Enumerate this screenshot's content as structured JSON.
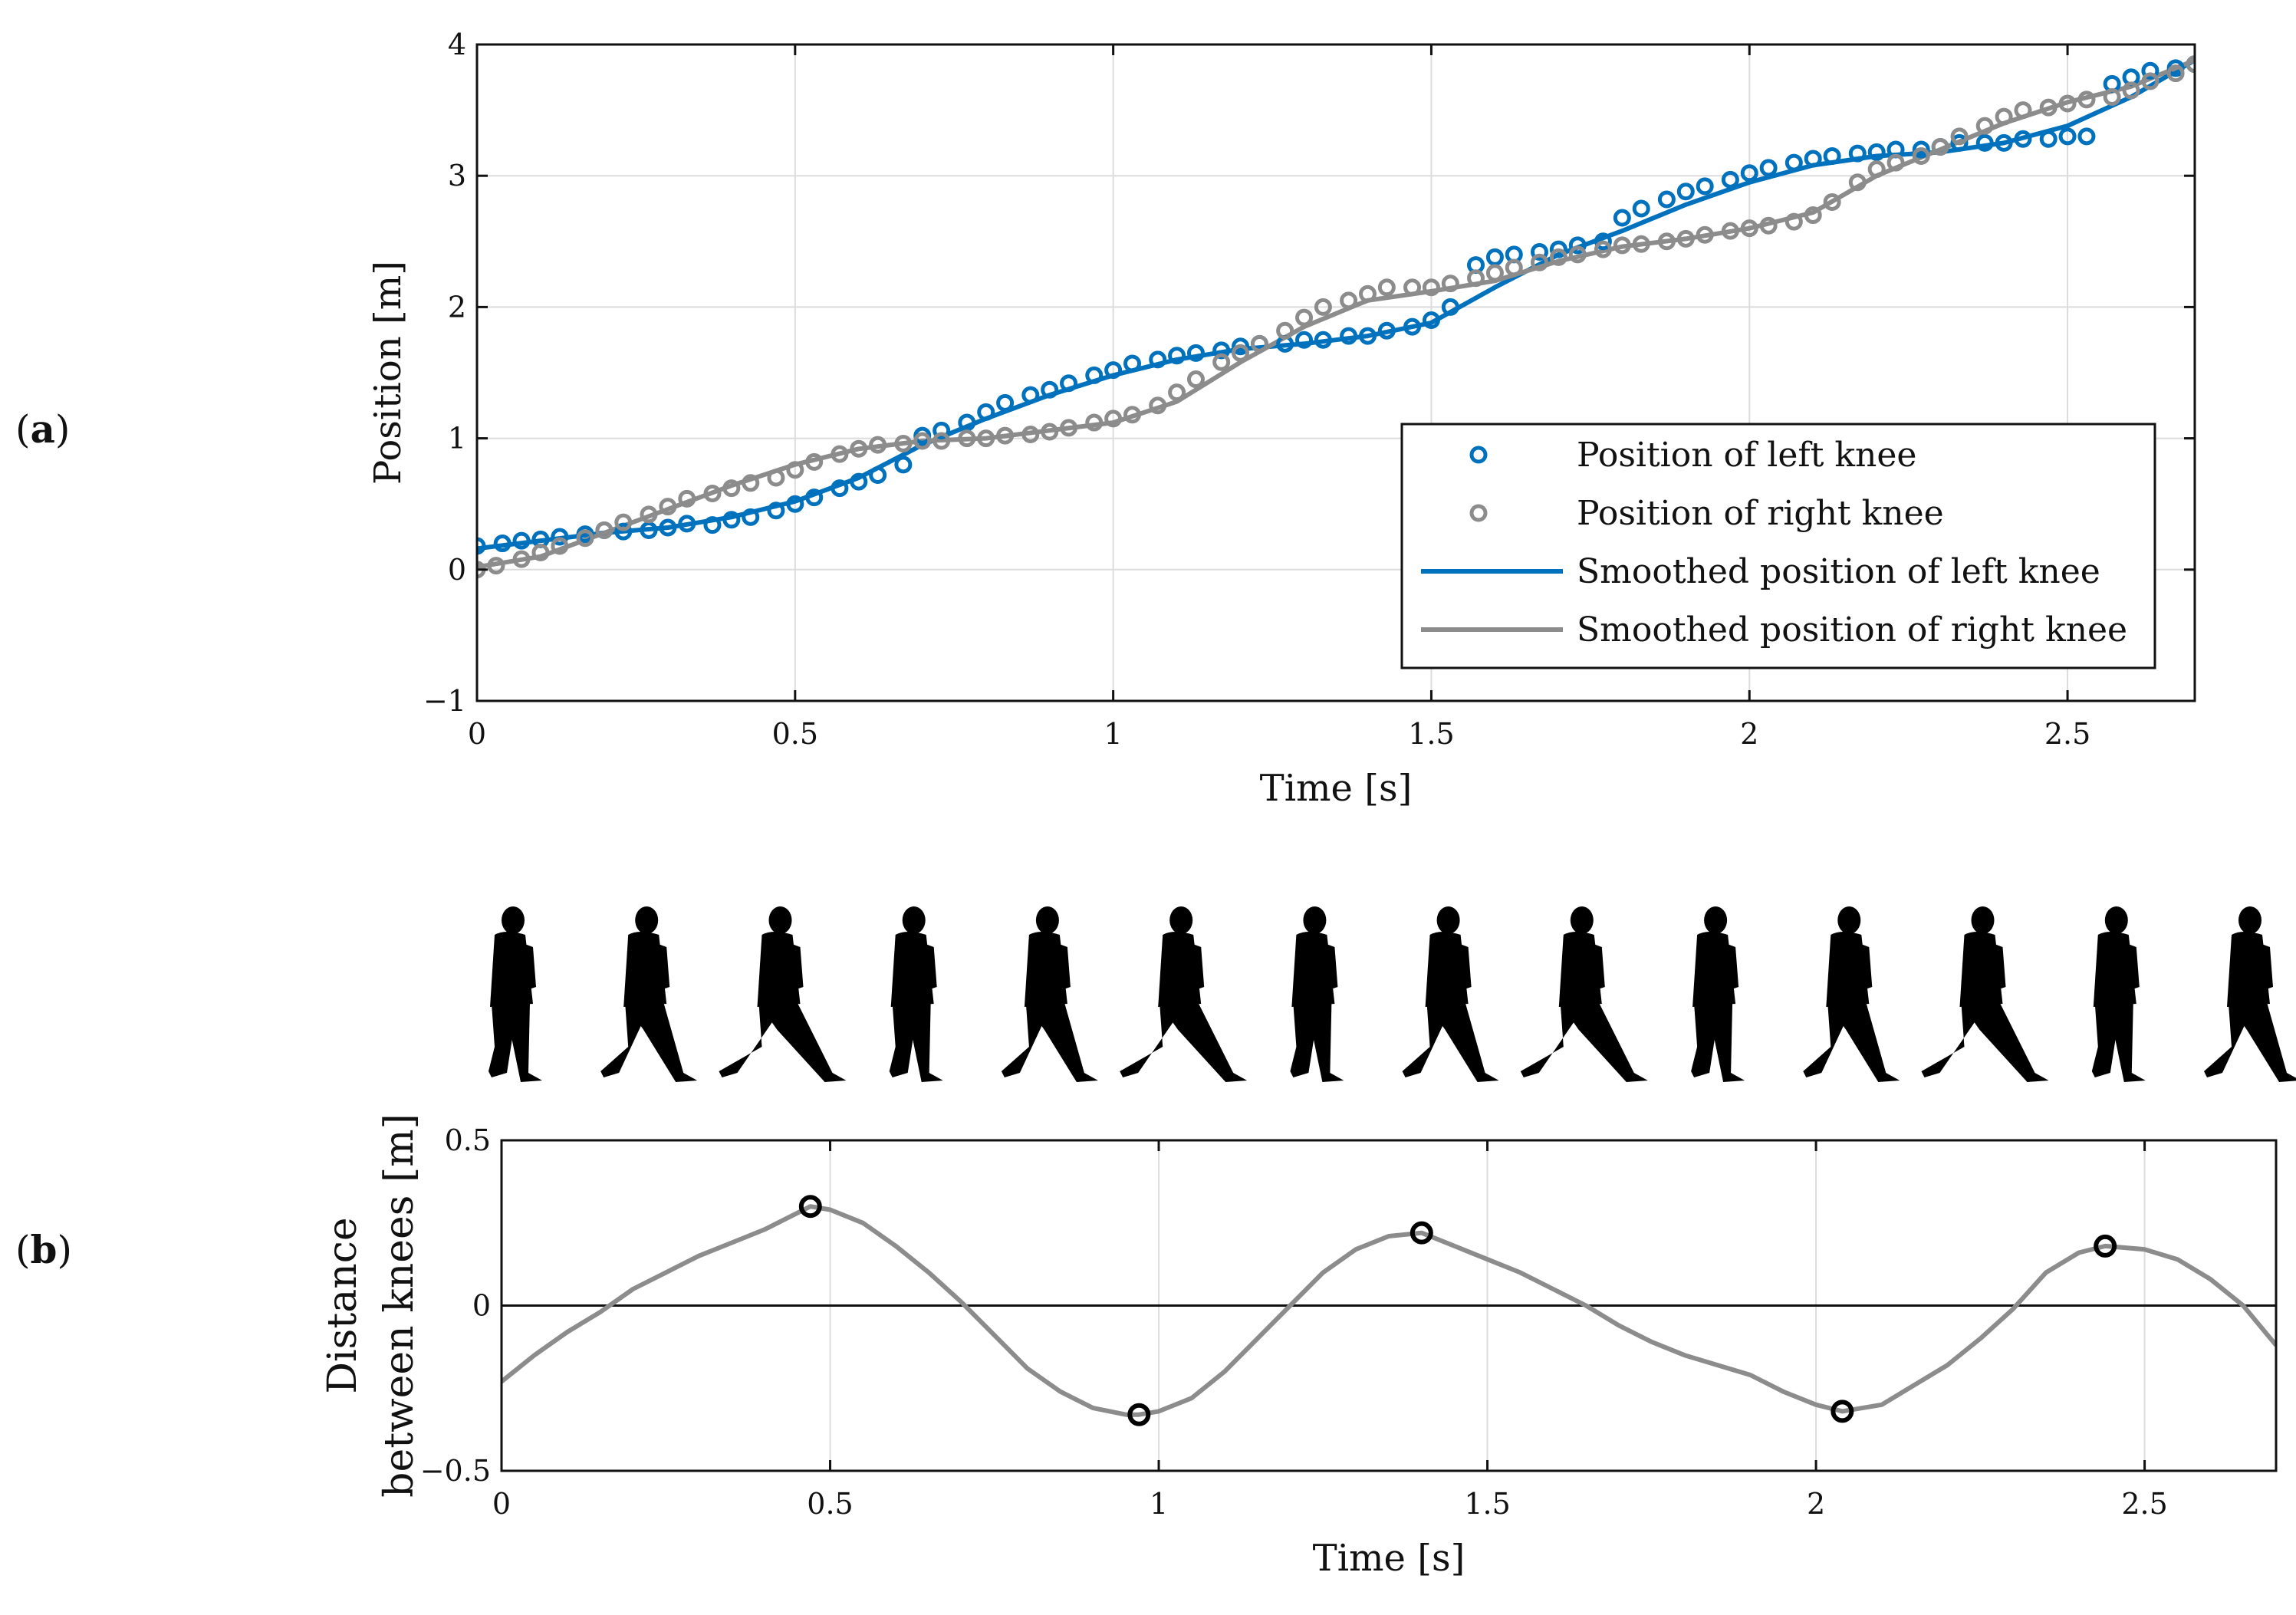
{
  "panel_labels": {
    "a": "a",
    "b": "b"
  },
  "chart_data": [
    {
      "type": "scatter",
      "panel": "a",
      "xlabel": "Time [s]",
      "ylabel": "Position [m]",
      "xlim": [
        0,
        2.7
      ],
      "ylim": [
        -1,
        4
      ],
      "xticks": [
        0,
        0.5,
        1,
        1.5,
        2,
        2.5
      ],
      "xtick_labels": [
        "0",
        "0.5",
        "1",
        "1.5",
        "2",
        "2.5"
      ],
      "yticks": [
        -1,
        0,
        1,
        2,
        3,
        4
      ],
      "ytick_labels": [
        "−1",
        "0",
        "1",
        "2",
        "3",
        "4"
      ],
      "grid": true,
      "legend_position": "bottom-right",
      "series": [
        {
          "name": "Position of left knee",
          "kind": "markers",
          "color": "#0072BD",
          "x": [
            0.0,
            0.04,
            0.07,
            0.1,
            0.13,
            0.17,
            0.2,
            0.23,
            0.27,
            0.3,
            0.33,
            0.37,
            0.4,
            0.43,
            0.47,
            0.5,
            0.53,
            0.57,
            0.6,
            0.63,
            0.67,
            0.7,
            0.73,
            0.77,
            0.8,
            0.83,
            0.87,
            0.9,
            0.93,
            0.97,
            1.0,
            1.03,
            1.07,
            1.1,
            1.13,
            1.17,
            1.2,
            1.23,
            1.27,
            1.3,
            1.33,
            1.37,
            1.4,
            1.43,
            1.47,
            1.5,
            1.53,
            1.57,
            1.6,
            1.63,
            1.67,
            1.7,
            1.73,
            1.77,
            1.8,
            1.83,
            1.87,
            1.9,
            1.93,
            1.97,
            2.0,
            2.03,
            2.07,
            2.1,
            2.13,
            2.17,
            2.2,
            2.23,
            2.27,
            2.3,
            2.33,
            2.37,
            2.4,
            2.43,
            2.47,
            2.5,
            2.53,
            2.57,
            2.6,
            2.63,
            2.67,
            2.7
          ],
          "y": [
            0.18,
            0.2,
            0.22,
            0.23,
            0.25,
            0.27,
            0.3,
            0.29,
            0.3,
            0.32,
            0.35,
            0.34,
            0.38,
            0.4,
            0.45,
            0.5,
            0.55,
            0.62,
            0.67,
            0.72,
            0.8,
            1.02,
            1.06,
            1.12,
            1.2,
            1.27,
            1.33,
            1.37,
            1.42,
            1.48,
            1.52,
            1.57,
            1.6,
            1.63,
            1.65,
            1.67,
            1.7,
            1.72,
            1.72,
            1.75,
            1.75,
            1.78,
            1.78,
            1.82,
            1.85,
            1.9,
            2.0,
            2.32,
            2.38,
            2.4,
            2.42,
            2.44,
            2.47,
            2.5,
            2.68,
            2.75,
            2.82,
            2.88,
            2.92,
            2.97,
            3.02,
            3.06,
            3.1,
            3.13,
            3.15,
            3.17,
            3.18,
            3.2,
            3.2,
            3.22,
            3.25,
            3.25,
            3.25,
            3.28,
            3.28,
            3.3,
            3.3,
            3.7,
            3.75,
            3.8,
            3.82,
            3.85
          ]
        },
        {
          "name": "Position of right knee",
          "kind": "markers",
          "color": "#8C8C8C",
          "x": [
            0.0,
            0.03,
            0.07,
            0.1,
            0.13,
            0.17,
            0.2,
            0.23,
            0.27,
            0.3,
            0.33,
            0.37,
            0.4,
            0.43,
            0.47,
            0.5,
            0.53,
            0.57,
            0.6,
            0.63,
            0.67,
            0.7,
            0.73,
            0.77,
            0.8,
            0.83,
            0.87,
            0.9,
            0.93,
            0.97,
            1.0,
            1.03,
            1.07,
            1.1,
            1.13,
            1.17,
            1.2,
            1.23,
            1.27,
            1.3,
            1.33,
            1.37,
            1.4,
            1.43,
            1.47,
            1.5,
            1.53,
            1.57,
            1.6,
            1.63,
            1.67,
            1.7,
            1.73,
            1.77,
            1.8,
            1.83,
            1.87,
            1.9,
            1.93,
            1.97,
            2.0,
            2.03,
            2.07,
            2.1,
            2.13,
            2.17,
            2.2,
            2.23,
            2.27,
            2.3,
            2.33,
            2.37,
            2.4,
            2.43,
            2.47,
            2.5,
            2.53,
            2.57,
            2.6,
            2.63,
            2.67,
            2.7
          ],
          "y": [
            0.0,
            0.03,
            0.08,
            0.13,
            0.18,
            0.24,
            0.3,
            0.36,
            0.42,
            0.48,
            0.54,
            0.58,
            0.62,
            0.66,
            0.7,
            0.76,
            0.82,
            0.88,
            0.92,
            0.95,
            0.96,
            0.98,
            0.98,
            1.0,
            1.0,
            1.02,
            1.03,
            1.05,
            1.08,
            1.12,
            1.15,
            1.18,
            1.25,
            1.35,
            1.45,
            1.58,
            1.65,
            1.72,
            1.82,
            1.92,
            2.0,
            2.05,
            2.1,
            2.15,
            2.15,
            2.15,
            2.18,
            2.22,
            2.26,
            2.3,
            2.34,
            2.38,
            2.4,
            2.44,
            2.47,
            2.48,
            2.5,
            2.52,
            2.55,
            2.58,
            2.6,
            2.62,
            2.65,
            2.7,
            2.8,
            2.95,
            3.05,
            3.1,
            3.15,
            3.22,
            3.3,
            3.38,
            3.45,
            3.5,
            3.52,
            3.55,
            3.58,
            3.6,
            3.65,
            3.72,
            3.78,
            3.85
          ]
        },
        {
          "name": "Smoothed position of left knee",
          "kind": "line",
          "color": "#0072BD",
          "x": [
            0,
            0.1,
            0.2,
            0.3,
            0.4,
            0.5,
            0.6,
            0.7,
            0.8,
            0.9,
            1.0,
            1.1,
            1.2,
            1.3,
            1.4,
            1.5,
            1.6,
            1.7,
            1.8,
            1.9,
            2.0,
            2.1,
            2.2,
            2.3,
            2.4,
            2.5,
            2.6,
            2.7
          ],
          "y": [
            0.16,
            0.22,
            0.28,
            0.32,
            0.4,
            0.52,
            0.7,
            0.95,
            1.15,
            1.33,
            1.48,
            1.6,
            1.68,
            1.72,
            1.78,
            1.88,
            2.15,
            2.4,
            2.58,
            2.78,
            2.95,
            3.08,
            3.15,
            3.18,
            3.25,
            3.38,
            3.6,
            3.88
          ]
        },
        {
          "name": "Smoothed position of right knee",
          "kind": "line",
          "color": "#8C8C8C",
          "x": [
            0,
            0.1,
            0.2,
            0.3,
            0.4,
            0.5,
            0.6,
            0.7,
            0.8,
            0.9,
            1.0,
            1.1,
            1.2,
            1.3,
            1.4,
            1.5,
            1.6,
            1.7,
            1.8,
            1.9,
            2.0,
            2.1,
            2.2,
            2.3,
            2.4,
            2.5,
            2.6,
            2.7
          ],
          "y": [
            0.02,
            0.1,
            0.28,
            0.46,
            0.64,
            0.8,
            0.92,
            0.98,
            1.0,
            1.06,
            1.12,
            1.28,
            1.58,
            1.85,
            2.05,
            2.12,
            2.2,
            2.35,
            2.46,
            2.52,
            2.6,
            2.72,
            3.0,
            3.2,
            3.4,
            3.56,
            3.68,
            3.88
          ]
        }
      ]
    },
    {
      "type": "line",
      "panel": "b",
      "xlabel": "Time [s]",
      "ylabel": [
        "Distance",
        "between knees [m]"
      ],
      "xlim": [
        0,
        2.7
      ],
      "ylim": [
        -0.5,
        0.5
      ],
      "xticks": [
        0,
        0.5,
        1,
        1.5,
        2,
        2.5
      ],
      "xtick_labels": [
        "0",
        "0.5",
        "1",
        "1.5",
        "2",
        "2.5"
      ],
      "yticks": [
        -0.5,
        0,
        0.5
      ],
      "ytick_labels": [
        "−0.5",
        "0",
        "0.5"
      ],
      "grid": true,
      "zero_line": true,
      "series": [
        {
          "kind": "line",
          "color": "#8C8C8C",
          "x": [
            0,
            0.05,
            0.1,
            0.15,
            0.2,
            0.25,
            0.3,
            0.35,
            0.4,
            0.45,
            0.47,
            0.5,
            0.55,
            0.6,
            0.65,
            0.7,
            0.75,
            0.8,
            0.85,
            0.9,
            0.95,
            0.97,
            1.0,
            1.05,
            1.1,
            1.15,
            1.2,
            1.25,
            1.3,
            1.35,
            1.4,
            1.45,
            1.5,
            1.55,
            1.6,
            1.65,
            1.7,
            1.75,
            1.8,
            1.85,
            1.9,
            1.95,
            2.0,
            2.04,
            2.1,
            2.15,
            2.2,
            2.25,
            2.3,
            2.35,
            2.4,
            2.44,
            2.5,
            2.55,
            2.6,
            2.65,
            2.7
          ],
          "y": [
            -0.23,
            -0.15,
            -0.08,
            -0.02,
            0.05,
            0.1,
            0.15,
            0.19,
            0.23,
            0.28,
            0.3,
            0.29,
            0.25,
            0.18,
            0.1,
            0.01,
            -0.09,
            -0.19,
            -0.26,
            -0.31,
            -0.33,
            -0.33,
            -0.32,
            -0.28,
            -0.2,
            -0.1,
            0.0,
            0.1,
            0.17,
            0.21,
            0.22,
            0.18,
            0.14,
            0.1,
            0.05,
            0.0,
            -0.06,
            -0.11,
            -0.15,
            -0.18,
            -0.21,
            -0.26,
            -0.3,
            -0.32,
            -0.3,
            -0.24,
            -0.18,
            -0.1,
            -0.01,
            0.1,
            0.16,
            0.18,
            0.17,
            0.14,
            0.08,
            0.0,
            -0.12
          ]
        }
      ],
      "extrema_markers": {
        "color": "#000000",
        "x": [
          0.47,
          0.97,
          1.4,
          2.04,
          2.44
        ],
        "y": [
          0.3,
          -0.33,
          0.22,
          -0.32,
          0.18
        ]
      }
    }
  ]
}
